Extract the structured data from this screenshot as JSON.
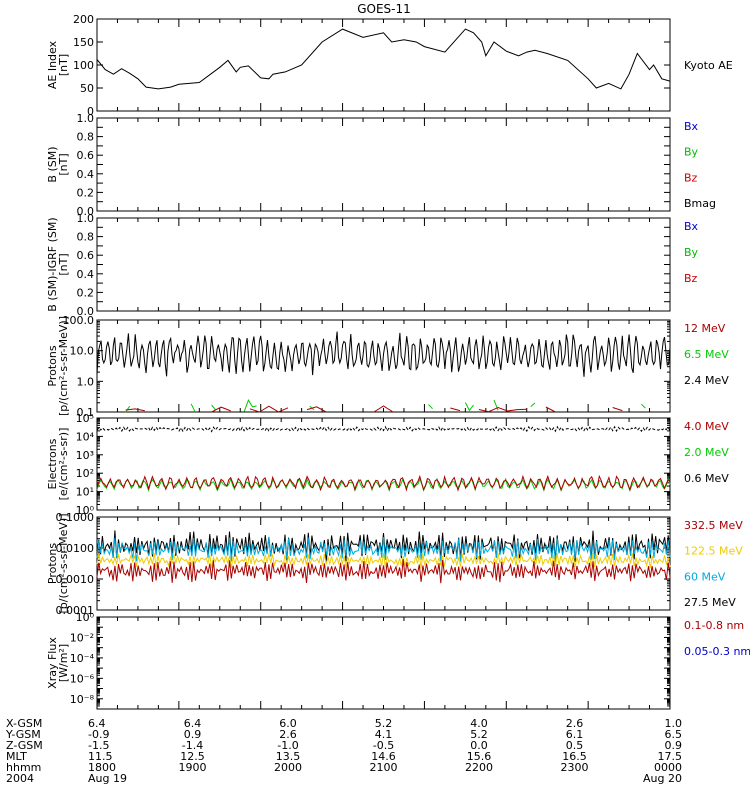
{
  "title": "GOES-11",
  "chart_data": [
    {
      "type": "line",
      "ylabel": [
        "AE Index",
        "[nT]"
      ],
      "ylim": [
        0,
        200
      ],
      "scale": "linear",
      "yticks": [
        0,
        50,
        100,
        150,
        200
      ],
      "ytick_labels": [
        "0",
        "50",
        "100",
        "150",
        "200"
      ],
      "legend": [
        {
          "text": "Kyoto AE",
          "color": "#000000"
        }
      ],
      "series": [
        {
          "name": "Kyoto AE",
          "color": "#000000",
          "x": [
            0,
            0.1,
            0.2,
            0.3,
            0.4,
            0.5,
            0.6,
            0.75,
            0.9,
            1.0,
            1.25,
            1.5,
            1.6,
            1.7,
            1.75,
            1.85,
            2.0,
            2.1,
            2.15,
            2.3,
            2.5,
            2.75,
            3.0,
            3.25,
            3.5,
            3.6,
            3.75,
            3.9,
            4.0,
            4.25,
            4.5,
            4.6,
            4.7,
            4.75,
            4.85,
            5.0,
            5.15,
            5.25,
            5.35,
            5.5,
            5.75,
            6.0,
            6.1,
            6.25,
            6.4,
            6.5,
            6.6,
            6.75,
            6.8,
            6.9,
            7.0
          ],
          "y": [
            112,
            90,
            80,
            92,
            82,
            70,
            52,
            48,
            52,
            58,
            62,
            95,
            110,
            85,
            95,
            98,
            72,
            70,
            80,
            85,
            100,
            150,
            178,
            160,
            170,
            150,
            155,
            150,
            140,
            128,
            178,
            170,
            150,
            120,
            150,
            130,
            120,
            128,
            132,
            125,
            110,
            70,
            50,
            60,
            48,
            80,
            125,
            90,
            100,
            70,
            65
          ]
        }
      ]
    },
    {
      "type": "line",
      "ylabel": [
        "B (SM)",
        "[nT]"
      ],
      "ylim": [
        0,
        1
      ],
      "scale": "linear",
      "yticks": [
        0,
        0.1,
        0.2,
        0.3,
        0.4,
        0.5,
        0.6,
        0.7,
        0.8,
        0.9,
        1.0
      ],
      "ytick_labels": [
        "0.0",
        "",
        "0.2",
        "",
        "0.4",
        "",
        "0.6",
        "",
        "0.8",
        "",
        "1.0"
      ],
      "legend": [
        {
          "text": "Bx",
          "color": "#0000cc"
        },
        {
          "text": "By",
          "color": "#00bb00"
        },
        {
          "text": "Bz",
          "color": "#cc0000"
        },
        {
          "text": "Bmag",
          "color": "#000000"
        }
      ],
      "series": []
    },
    {
      "type": "line",
      "ylabel": [
        "B (SM)-IGRF (SM)",
        "[nT]"
      ],
      "ylim": [
        0,
        1
      ],
      "scale": "linear",
      "yticks": [
        0,
        0.1,
        0.2,
        0.3,
        0.4,
        0.5,
        0.6,
        0.7,
        0.8,
        0.9,
        1.0
      ],
      "ytick_labels": [
        "0.0",
        "",
        "0.2",
        "",
        "0.4",
        "",
        "0.6",
        "",
        "0.8",
        "",
        "1.0"
      ],
      "legend": [
        {
          "text": "Bx",
          "color": "#0000cc"
        },
        {
          "text": "By",
          "color": "#00bb00"
        },
        {
          "text": "Bz",
          "color": "#cc0000"
        }
      ],
      "series": []
    },
    {
      "type": "line",
      "ylabel": [
        "Protons",
        "[p/(cm²-s-sr-MeV)]"
      ],
      "ylim": [
        0.1,
        100
      ],
      "scale": "log",
      "yticks": [
        0.1,
        1,
        10,
        100
      ],
      "ytick_labels": [
        "0.1",
        "1.0",
        "10.0",
        "100.0"
      ],
      "legend": [
        {
          "text": "12 MeV",
          "color": "#aa0000"
        },
        {
          "text": "6.5 MeV",
          "color": "#00cc00"
        },
        {
          "text": "2.4 MeV",
          "color": "#000000"
        }
      ],
      "series": [
        {
          "name": "2.4 MeV",
          "color": "#000000",
          "base": 8,
          "amp": 0.55,
          "period": 0.085,
          "points": 420,
          "seed": 3
        },
        {
          "name": "6.5 MeV",
          "color": "#00cc00",
          "base": 0.15,
          "amp": 0.2,
          "period": 0.12,
          "points": 140,
          "seed": 7,
          "sparse": true
        },
        {
          "name": "12 MeV",
          "color": "#aa0000",
          "base": 0.12,
          "amp": 0.1,
          "period": 0.2,
          "points": 60,
          "seed": 11,
          "sparse": true
        }
      ]
    },
    {
      "type": "line",
      "ylabel": [
        "Electrons",
        "[e/(cm²-s-sr)]"
      ],
      "ylim": [
        1,
        100000
      ],
      "scale": "log",
      "yticks": [
        1,
        10,
        100,
        1000,
        10000,
        100000
      ],
      "ytick_labels": [
        "10⁰",
        "10¹",
        "10²",
        "10³",
        "10⁴",
        "10⁵"
      ],
      "legend": [
        {
          "text": "4.0 MeV",
          "color": "#aa0000"
        },
        {
          "text": "2.0 MeV",
          "color": "#00cc00"
        },
        {
          "text": "0.6 MeV",
          "color": "#000000"
        }
      ],
      "series": [
        {
          "name": "0.6 MeV",
          "color": "#000000",
          "base": 25000,
          "amp": 0.1,
          "period": 0.05,
          "points": 300,
          "seed": 5,
          "dashed": true
        },
        {
          "name": "2.0 MeV",
          "color": "#00cc00",
          "base": 25,
          "amp": 0.25,
          "period": 0.03,
          "points": 300,
          "seed": 9
        },
        {
          "name": "4.0 MeV",
          "color": "#aa0000",
          "base": 30,
          "amp": 0.3,
          "period": 0.03,
          "points": 300,
          "seed": 13
        }
      ]
    },
    {
      "type": "line",
      "ylabel": [
        "Protons",
        "[p/(cm²-s-sr-MeV)]"
      ],
      "ylim": [
        0.0001,
        0.1
      ],
      "scale": "log",
      "yticks": [
        0.0001,
        0.001,
        0.01,
        0.1
      ],
      "ytick_labels": [
        "0.0001",
        "0.0010",
        "0.0100",
        "0.1000"
      ],
      "legend": [
        {
          "text": "332.5 MeV",
          "color": "#aa0000"
        },
        {
          "text": "122.5 MeV",
          "color": "#eecc00"
        },
        {
          "text": "60 MeV",
          "color": "#00aadd"
        },
        {
          "text": "27.5 MeV",
          "color": "#000000"
        }
      ],
      "series": [
        {
          "name": "27.5 MeV",
          "color": "#000000",
          "base": 0.012,
          "amp": 0.4,
          "period": 0.04,
          "points": 320,
          "seed": 17
        },
        {
          "name": "60 MeV",
          "color": "#00aadd",
          "base": 0.009,
          "amp": 0.3,
          "period": 0.04,
          "points": 320,
          "seed": 19
        },
        {
          "name": "122.5 MeV",
          "color": "#eecc00",
          "base": 0.004,
          "amp": 0.2,
          "period": 0.04,
          "points": 320,
          "seed": 23
        },
        {
          "name": "332.5 MeV",
          "color": "#aa0000",
          "base": 0.0018,
          "amp": 0.3,
          "period": 0.04,
          "points": 320,
          "seed": 29
        }
      ]
    },
    {
      "type": "line",
      "ylabel": [
        "Xray  Flux",
        "[W/m²]"
      ],
      "ylim": [
        1e-09,
        1
      ],
      "scale": "log",
      "yticks": [
        1e-09,
        1e-08,
        1e-07,
        1e-06,
        1e-05,
        0.0001,
        0.001,
        0.01,
        0.1,
        1
      ],
      "ytick_labels": [
        "",
        "10⁻⁸",
        "",
        "10⁻⁶",
        "",
        "10⁻⁴",
        "",
        "10⁻²",
        "",
        "10⁰"
      ],
      "legend": [
        {
          "text": "0.1-0.8 nm",
          "color": "#aa0000"
        },
        {
          "text": "0.05-0.3 nm",
          "color": "#0000cc"
        }
      ],
      "series": []
    }
  ],
  "x_axis": {
    "range": [
      0,
      7
    ],
    "major_ticks": [
      0,
      1,
      2,
      3,
      4,
      5,
      6,
      7
    ],
    "rows": [
      {
        "label": "X-GSM",
        "values": [
          "6.4",
          "6.4",
          "6.0",
          "5.2",
          "4.0",
          "2.6",
          "1.0"
        ]
      },
      {
        "label": "Y-GSM",
        "values": [
          "-0.9",
          "0.9",
          "2.6",
          "4.1",
          "5.2",
          "6.1",
          "6.5"
        ]
      },
      {
        "label": "Z-GSM",
        "values": [
          "-1.5",
          "-1.4",
          "-1.0",
          "-0.5",
          "0.0",
          "0.5",
          "0.9"
        ]
      },
      {
        "label": "MLT",
        "values": [
          "11.5",
          "12.5",
          "13.5",
          "14.6",
          "15.6",
          "16.5",
          "17.5"
        ]
      },
      {
        "label": "hhmm",
        "values": [
          "1800",
          "1900",
          "2000",
          "2100",
          "2200",
          "2300",
          "0000"
        ]
      },
      {
        "label": "2004",
        "values": [
          "Aug 19",
          "",
          "",
          "",
          "",
          "",
          "Aug 20"
        ]
      }
    ]
  }
}
